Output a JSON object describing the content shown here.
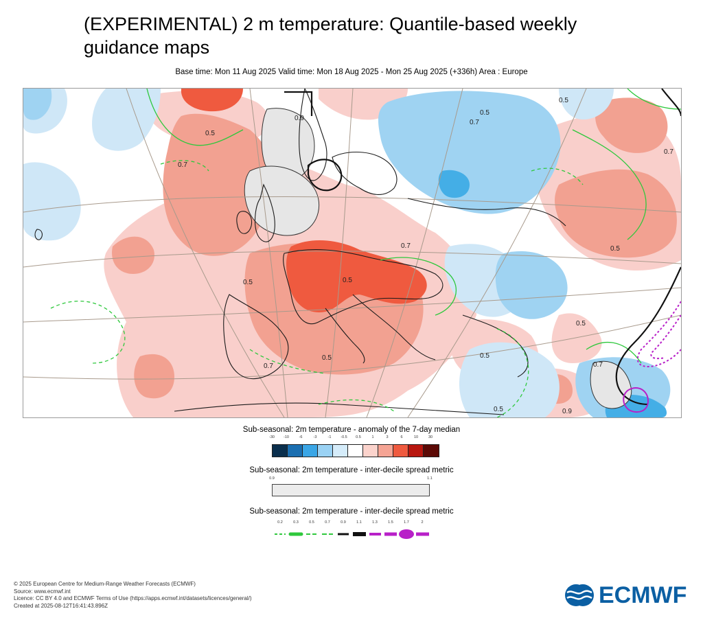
{
  "header": {
    "title": "(EXPERIMENTAL) 2 m temperature: Quantile-based weekly guidance maps",
    "subtitle": "Base time: Mon 11 Aug 2025 Valid time: Mon 18 Aug 2025 - Mon 25 Aug 2025 (+336h) Area : Europe"
  },
  "map": {
    "contour_labels": [
      "0.5",
      "0.7",
      "0.9",
      "0.5",
      "0.5",
      "0.7",
      "0.5",
      "0.7",
      "0.5",
      "0.5",
      "0.5",
      "0.7",
      "0.5",
      "0.9",
      "0.7",
      "0.5",
      "0.5",
      "0.7"
    ],
    "colors": {
      "warm_light": "#f9cfcb",
      "warm_mid": "#f2a191",
      "warm_strong": "#ef5a3f",
      "warm_dark": "#c81e17",
      "cool_light": "#cfe7f7",
      "cool_mid": "#9fd3f2",
      "cool_strong": "#44aee6",
      "spread_grey": "#e6e6e6",
      "coast": "#1a1a1a",
      "graticule": "#a89a8c",
      "contour_green": "#2ec83c",
      "contour_black": "#111111",
      "contour_purple": "#b820c8"
    }
  },
  "legend_anomaly": {
    "title": "Sub-seasonal: 2m temperature - anomaly of the 7-day median",
    "ticks": [
      "-30",
      "-10",
      "-6",
      "-3",
      "-1",
      "-0.5",
      "0.5",
      "1",
      "3",
      "6",
      "10",
      "30"
    ],
    "colors": [
      "#0a2f4d",
      "#1b6fb1",
      "#3aa6e6",
      "#9ad2f4",
      "#d5ecfa",
      "#ffffff",
      "#fbd3cc",
      "#f5a494",
      "#ef5a3f",
      "#b8170f",
      "#5c0a06"
    ]
  },
  "legend_spread": {
    "title": "Sub-seasonal: 2m temperature - inter-decile spread metric",
    "ticks": [
      "0.9",
      "1.1"
    ],
    "color": "#ececec"
  },
  "legend_lines": {
    "title": "Sub-seasonal: 2m temperature - inter-decile spread metric",
    "ticks": [
      "0.2",
      "0.3",
      "0.5",
      "0.7",
      "0.9",
      "1.1",
      "1.3",
      "1.5",
      "1.7",
      "2"
    ]
  },
  "footer": {
    "line1": "© 2025 European Centre for Medium-Range Weather Forecasts (ECMWF)",
    "line2": "Source: www.ecmwf.int",
    "line3": "Licence: CC BY 4.0 and ECMWF Terms of Use (https://apps.ecmwf.int/datasets/licences/general/)",
    "line4": "Created at 2025-08-12T16:41:43.896Z"
  },
  "logo": {
    "text": "ECMWF",
    "color": "#0b5fa3"
  }
}
